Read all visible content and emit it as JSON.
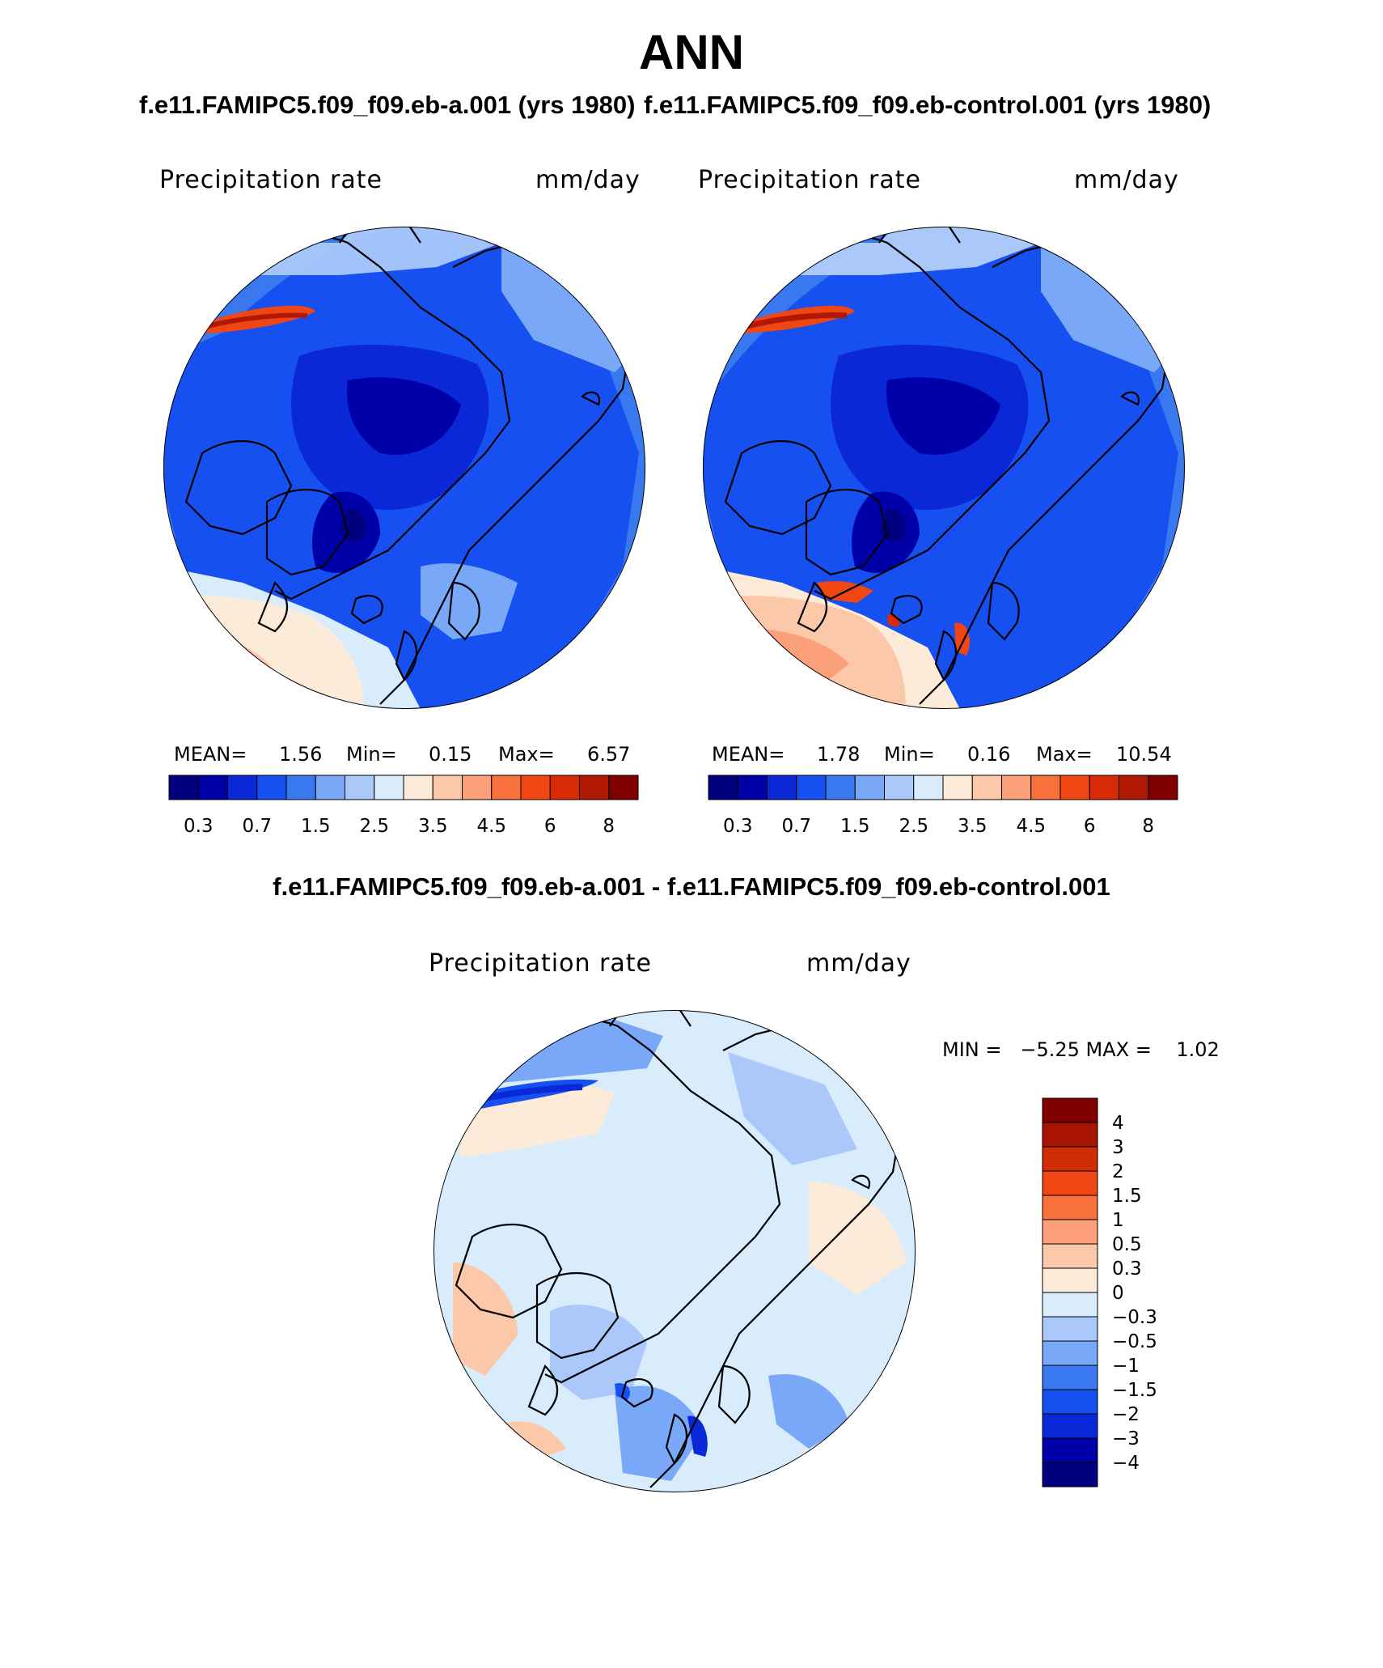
{
  "figure": {
    "title": "ANN",
    "panel_a_title": "f.e11.FAMIPC5.f09_f09.eb-a.001 (yrs 1980)",
    "panel_b_title": "f.e11.FAMIPC5.f09_f09.eb-control.001 (yrs 1980)",
    "diff_title": "f.e11.FAMIPC5.f09_f09.eb-a.001 - f.e11.FAMIPC5.f09_f09.eb-control.001"
  },
  "panels": {
    "a": {
      "var": "Precipitation rate",
      "units": "mm/day",
      "mean_label": "MEAN=",
      "mean": "1.56",
      "min_label": "Min=",
      "min": "0.15",
      "max_label": "Max=",
      "max": "6.57"
    },
    "b": {
      "var": "Precipitation rate",
      "units": "mm/day",
      "mean_label": "MEAN=",
      "mean": "1.78",
      "min_label": "Min=",
      "min": "0.16",
      "max_label": "Max=",
      "max": "10.54"
    },
    "diff": {
      "var": "Precipitation rate",
      "units": "mm/day",
      "minmax": "MIN =   −5.25 MAX =    1.02"
    }
  },
  "chart_data": [
    {
      "type": "heatmap",
      "projection": "north-polar-stereographic",
      "title": "f.e11.FAMIPC5.f09_f09.eb-a.001 (yrs 1980)",
      "variable": "Precipitation rate",
      "units": "mm/day",
      "stats": {
        "mean": 1.56,
        "min": 0.15,
        "max": 6.57
      },
      "colorbar": {
        "orientation": "horizontal",
        "tick_labels": [
          "0.3",
          "0.7",
          "1.5",
          "2.5",
          "3.5",
          "4.5",
          "6",
          "8"
        ],
        "colors": [
          "#00007f",
          "#0000a8",
          "#0a28d8",
          "#1650f0",
          "#3a78f0",
          "#7aa8f8",
          "#aac8fa",
          "#d8ecfc",
          "#fcebd8",
          "#fcc8aa",
          "#fca07a",
          "#f8703c",
          "#f04614",
          "#d82a06",
          "#b01804",
          "#800000"
        ]
      }
    },
    {
      "type": "heatmap",
      "projection": "north-polar-stereographic",
      "title": "f.e11.FAMIPC5.f09_f09.eb-control.001 (yrs 1980)",
      "variable": "Precipitation rate",
      "units": "mm/day",
      "stats": {
        "mean": 1.78,
        "min": 0.16,
        "max": 10.54
      },
      "colorbar": {
        "orientation": "horizontal",
        "tick_labels": [
          "0.3",
          "0.7",
          "1.5",
          "2.5",
          "3.5",
          "4.5",
          "6",
          "8"
        ],
        "colors": [
          "#00007f",
          "#0000a8",
          "#0a28d8",
          "#1650f0",
          "#3a78f0",
          "#7aa8f8",
          "#aac8fa",
          "#d8ecfc",
          "#fcebd8",
          "#fcc8aa",
          "#fca07a",
          "#f8703c",
          "#f04614",
          "#d82a06",
          "#b01804",
          "#800000"
        ]
      }
    },
    {
      "type": "heatmap",
      "projection": "north-polar-stereographic",
      "title": "f.e11.FAMIPC5.f09_f09.eb-a.001 - f.e11.FAMIPC5.f09_f09.eb-control.001",
      "variable": "Precipitation rate",
      "units": "mm/day",
      "stats": {
        "min": -5.25,
        "max": 1.02
      },
      "colorbar": {
        "orientation": "vertical",
        "tick_labels_top_to_bottom": [
          "4",
          "3",
          "2",
          "1.5",
          "1",
          "0.5",
          "0.3",
          "0",
          "−0.3",
          "−0.5",
          "−1",
          "−1.5",
          "−2",
          "−3",
          "−4"
        ],
        "colors_top_to_bottom": [
          "#800000",
          "#a81404",
          "#d02c06",
          "#f04614",
          "#f8703c",
          "#fca07a",
          "#fcc8aa",
          "#fcebd8",
          "#d8ecfc",
          "#aac8fa",
          "#7aa8f8",
          "#3a78f0",
          "#1650f0",
          "#0a28d8",
          "#0000a8",
          "#00007f"
        ]
      }
    }
  ]
}
